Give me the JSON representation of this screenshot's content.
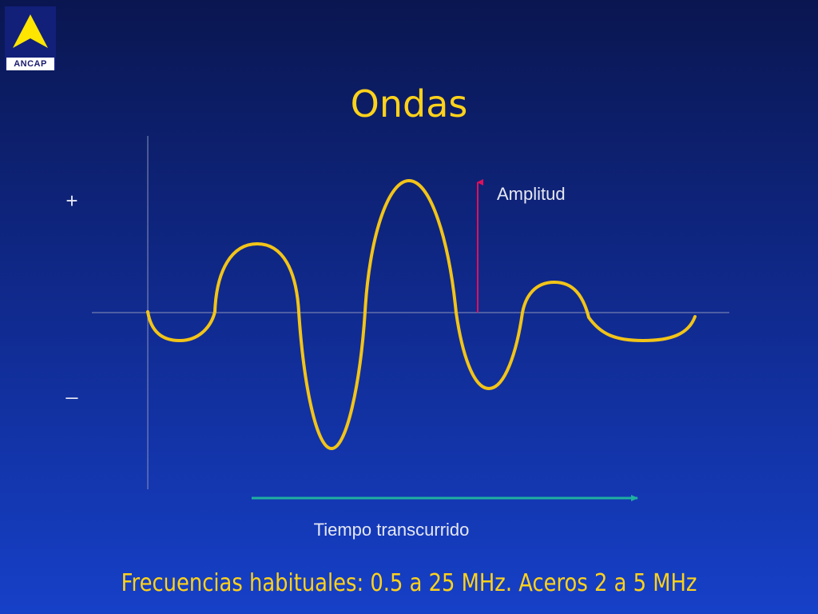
{
  "logo": {
    "text": "ANCAP",
    "icon": "triangle-logo-icon",
    "colors": {
      "triangle": "#ffe600",
      "background": "#12207a"
    }
  },
  "title": "Ondas",
  "diagram": {
    "plus_label": "+",
    "minus_label": "_",
    "amplitude_label": "Amplitud",
    "time_label": "Tiempo transcurrido",
    "colors": {
      "wave": "#f2c418",
      "axes": "#8c92b8",
      "amplitude_arrow": "#e0105a",
      "time_arrow": "#1fb0a0",
      "labels": "#e6e8f4"
    }
  },
  "footer": "Frecuencias habituales: 0.5 a 25 MHz. Aceros 2 a 5 MHz"
}
